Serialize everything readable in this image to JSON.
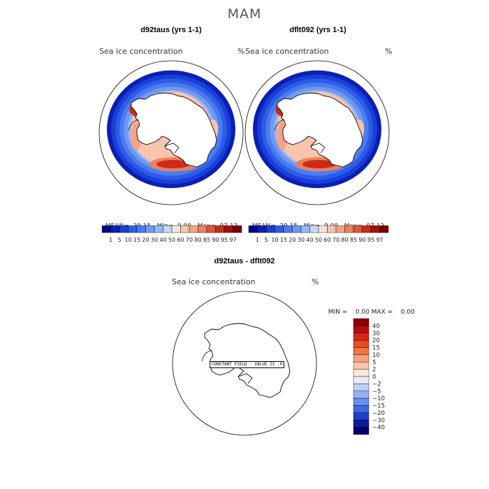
{
  "season": "MAM",
  "panels": [
    {
      "title": "d92taus (yrs 1-1)",
      "variable": "Sea ice concentration",
      "units": "%",
      "stats": {
        "mean": "29.15",
        "min": "0.00",
        "max": "97.12"
      }
    },
    {
      "title": "dflt092 (yrs 1-1)",
      "variable": "Sea ice concentration",
      "units": "%",
      "stats": {
        "mean": "29.15",
        "min": "0.00",
        "max": "97.12"
      }
    }
  ],
  "stat_labels": {
    "mean": "MEAN=",
    "min": "Min=",
    "max": "Max="
  },
  "diff_panel": {
    "title": "d92taus - dflt092",
    "variable": "Sea ice concentration",
    "units": "%",
    "min_label": "MIN =",
    "min_value": "0.00",
    "max_label": "MAX =",
    "max_value": "0.00",
    "note": "CONSTANT FIELD - VALUE IS .0"
  },
  "chart_data": [
    {
      "type": "heatmap",
      "title": "d92taus (yrs 1-1)",
      "variable": "Sea ice concentration",
      "units": "%",
      "mean": 29.15,
      "min": 0.0,
      "max": 97.12,
      "levels": [
        1,
        5,
        10,
        15,
        20,
        30,
        40,
        50,
        60,
        70,
        80,
        85,
        90,
        95,
        97
      ],
      "level_labels": [
        "1",
        "5",
        "10",
        "15",
        "20",
        "30",
        "40",
        "50",
        "60",
        "70",
        "80",
        "85",
        "90",
        "95",
        "97"
      ],
      "colors": [
        "#00008b",
        "#0a1fb5",
        "#1a3fd8",
        "#2d5ce8",
        "#4a7cf0",
        "#6f9af2",
        "#96b8f4",
        "#c4d8f8",
        "#f4e4da",
        "#f8c4ae",
        "#f4a386",
        "#ef7d5e",
        "#e2543a",
        "#cc2b18",
        "#a80d0a",
        "#7a0000"
      ]
    },
    {
      "type": "heatmap",
      "title": "dflt092 (yrs 1-1)",
      "variable": "Sea ice concentration",
      "units": "%",
      "mean": 29.15,
      "min": 0.0,
      "max": 97.12,
      "levels": [
        1,
        5,
        10,
        15,
        20,
        30,
        40,
        50,
        60,
        70,
        80,
        85,
        90,
        95,
        97
      ]
    },
    {
      "type": "heatmap",
      "title": "d92taus - dflt092",
      "variable": "Sea ice concentration",
      "units": "%",
      "min": 0.0,
      "max": 0.0,
      "levels": [
        40,
        30,
        20,
        15,
        10,
        5,
        2,
        0,
        -2,
        -5,
        -10,
        -15,
        -20,
        -30,
        -40
      ],
      "level_labels": [
        "40",
        "30",
        "20",
        "15",
        "10",
        "5",
        "2",
        "0",
        "−2",
        "−5",
        "−10",
        "−15",
        "−20",
        "−30",
        "−40"
      ],
      "colors": [
        "#8b0000",
        "#b30f0a",
        "#d82612",
        "#ec4a22",
        "#f27244",
        "#f5a07c",
        "#f8c8ae",
        "#fde8d8",
        "#e6ecf8",
        "#bcd0f4",
        "#92b2f0",
        "#6a90ec",
        "#4268e2",
        "#2040c8",
        "#0a1c9c",
        "#000070"
      ]
    }
  ]
}
